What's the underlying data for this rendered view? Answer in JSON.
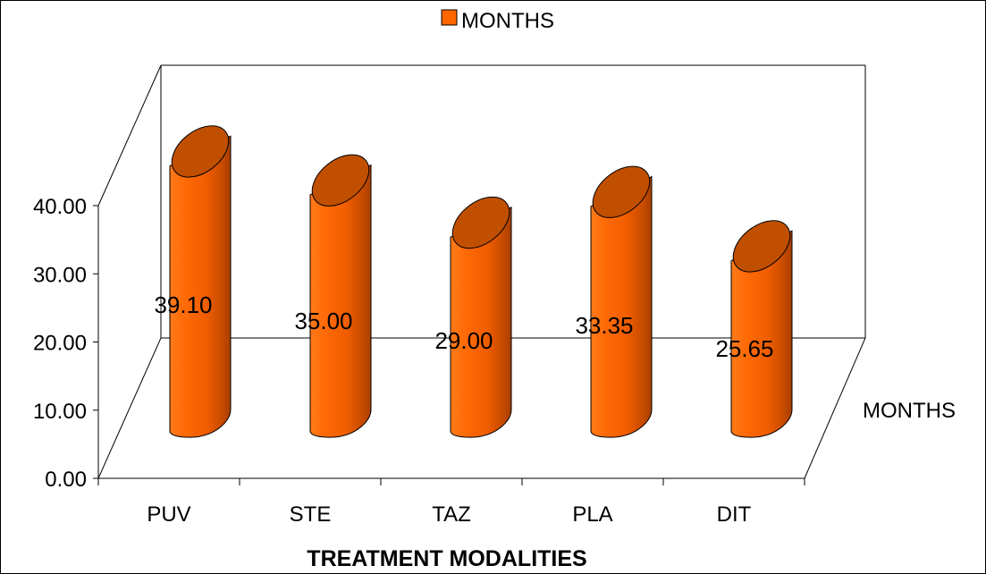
{
  "colors": {
    "bar_body": "#ff6600",
    "bar_top": "#c04f00",
    "bar_dark": "#b84400",
    "outline": "#000000",
    "background": "#ffffff"
  },
  "chart_data": {
    "type": "bar",
    "style": "3d-cylinder",
    "categories": [
      "PUV",
      "STE",
      "TAZ",
      "PLA",
      "DIT"
    ],
    "series": [
      {
        "name": "MONTHS",
        "values": [
          39.1,
          35.0,
          29.0,
          33.35,
          25.65
        ]
      }
    ],
    "data_labels": [
      "39.10",
      "35.00",
      "29.00",
      "33.35",
      "25.65"
    ],
    "y_ticks": [
      0,
      10,
      20,
      30,
      40
    ],
    "y_tick_labels": [
      "0.00",
      "10.00",
      "20.00",
      "30.00",
      "40.00"
    ],
    "ylim": [
      0,
      40
    ],
    "xlabel": "TREATMENT MODALITIES",
    "depth_axis_label": "MONTHS",
    "legend": {
      "position": "top-center",
      "entries": [
        "MONTHS"
      ]
    },
    "grid": false
  }
}
